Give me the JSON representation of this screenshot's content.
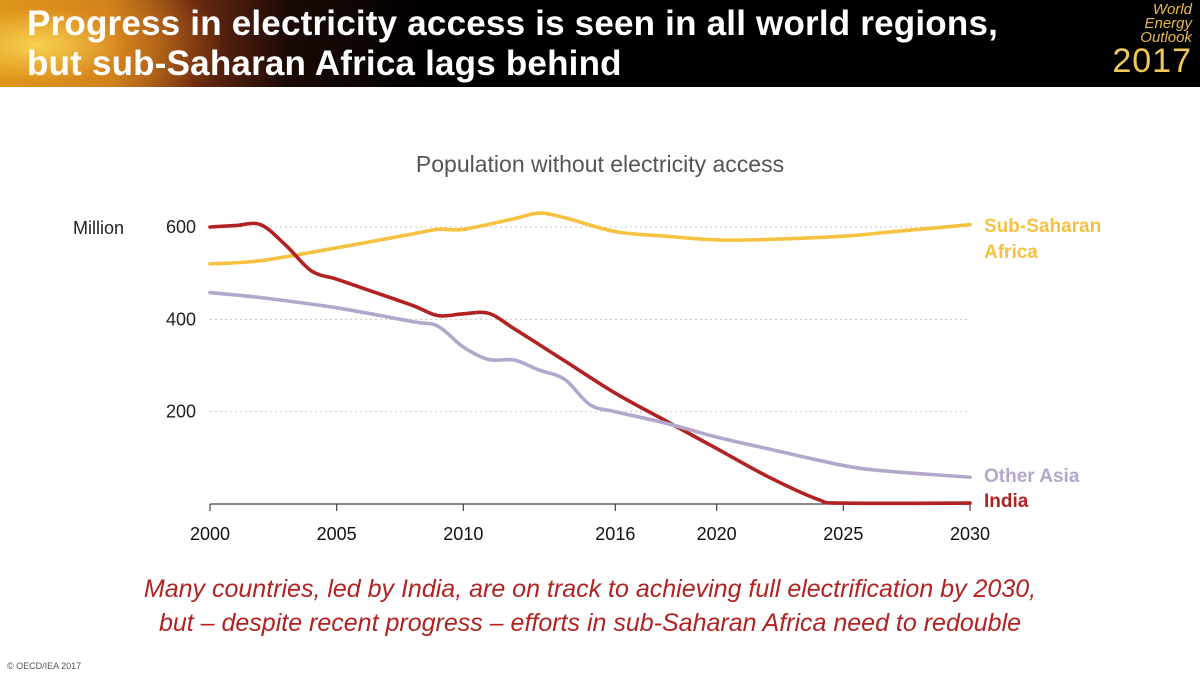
{
  "header": {
    "title_line1": "Progress in electricity access is seen in all world regions,",
    "title_line2": "but sub-Saharan Africa lags behind",
    "logo": {
      "line1": "World",
      "line2": "Energy",
      "line3": "Outlook",
      "year": "2017"
    }
  },
  "chart_data": {
    "type": "line",
    "title": "Population without electricity access",
    "ylabel": "Million",
    "xlim": [
      2000,
      2030
    ],
    "ylim": [
      0,
      600
    ],
    "yticks": [
      200,
      400,
      600
    ],
    "xticks": [
      2000,
      2005,
      2010,
      2016,
      2020,
      2025,
      2030
    ],
    "grid": true,
    "series": [
      {
        "name": "Sub-Saharan Africa",
        "label_lines": [
          "Sub-Saharan",
          "Africa"
        ],
        "color": "#f5c242",
        "x": [
          2000,
          2002,
          2005,
          2008,
          2009,
          2010,
          2012,
          2013,
          2014,
          2016,
          2018,
          2020,
          2022,
          2025,
          2027,
          2030
        ],
        "y": [
          520,
          527,
          555,
          585,
          595,
          595,
          618,
          630,
          620,
          590,
          580,
          572,
          573,
          580,
          590,
          605
        ]
      },
      {
        "name": "India",
        "label_lines": [
          "India"
        ],
        "color": "#b22222",
        "x": [
          2000,
          2001,
          2002,
          2003,
          2004,
          2005,
          2006,
          2008,
          2009,
          2010,
          2011,
          2012,
          2014,
          2016,
          2018,
          2020,
          2022,
          2024,
          2025,
          2030
        ],
        "y": [
          600,
          603,
          605,
          560,
          505,
          487,
          468,
          430,
          408,
          412,
          413,
          380,
          310,
          240,
          180,
          120,
          60,
          10,
          2,
          2
        ]
      },
      {
        "name": "Other Asia",
        "label_lines": [
          "Other Asia"
        ],
        "color": "#b3a8cc",
        "x": [
          2000,
          2002,
          2005,
          2008,
          2009,
          2010,
          2011,
          2012,
          2013,
          2014,
          2015,
          2016,
          2018,
          2020,
          2022,
          2024,
          2026,
          2030
        ],
        "y": [
          458,
          447,
          425,
          395,
          385,
          340,
          313,
          312,
          290,
          270,
          215,
          200,
          175,
          145,
          120,
          95,
          75,
          58
        ]
      }
    ]
  },
  "caption": {
    "line1": "Many countries, led by India, are on track to achieving full electrification by 2030,",
    "line2": "but – despite recent progress – efforts in sub-Saharan Africa need to redouble"
  },
  "footer": {
    "copyright": "© OECD/IEA 2017"
  }
}
